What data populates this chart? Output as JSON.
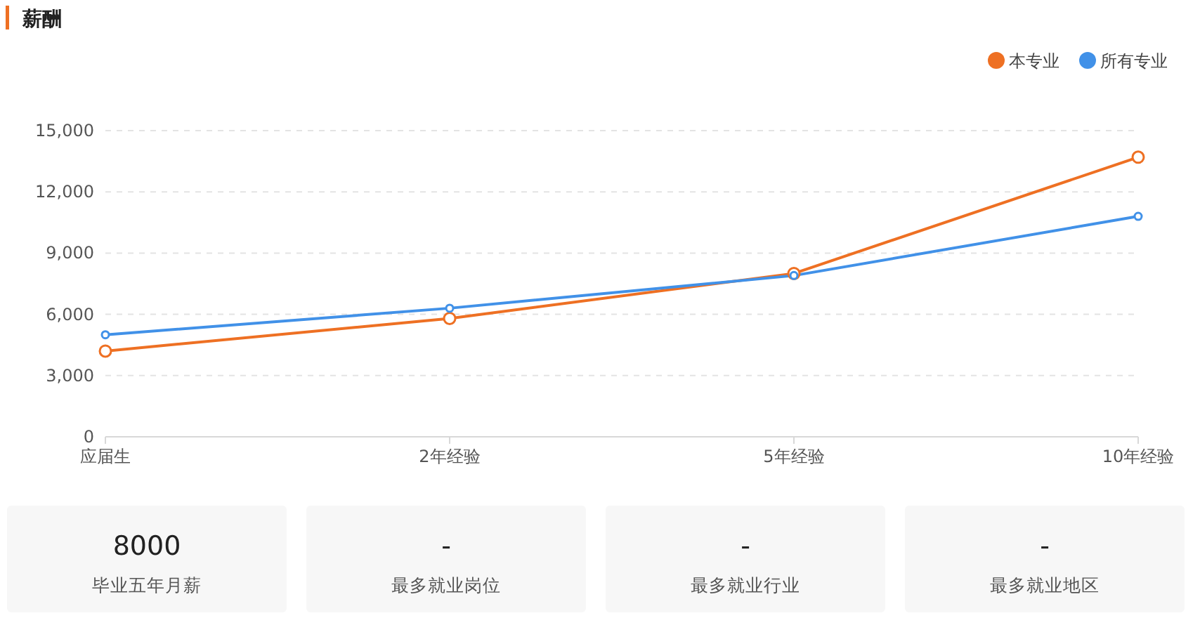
{
  "chart_data": [
    {
      "type": "line",
      "title": "薪酬",
      "categories": [
        "应届生",
        "2年经验",
        "5年经验",
        "10年经验"
      ],
      "series": [
        {
          "name": "本专业",
          "color": "#ee7023",
          "values": [
            4200,
            5800,
            8000,
            13700
          ]
        },
        {
          "name": "所有专业",
          "color": "#4191e8",
          "values": [
            5000,
            6300,
            7900,
            10800
          ]
        }
      ],
      "ylim": [
        0,
        15000
      ],
      "yticks": [
        0,
        {
          "value": 3000,
          "label": "3,000"
        },
        {
          "value": 6000,
          "label": "6,000"
        },
        {
          "value": 9000,
          "label": "9,000"
        },
        {
          "value": 12000,
          "label": "12,000"
        },
        {
          "value": 15000,
          "label": "15,000"
        }
      ],
      "grid": "y",
      "legend": "top right",
      "marker": "circle",
      "line_style": "solid"
    },
    {
      "type": "other",
      "annotations": [
        "8000",
        "毕业五年月薪",
        "-",
        "最多就业岗位",
        "-",
        "最多就业行业",
        "-",
        "最多就业地区"
      ]
    }
  ]
}
